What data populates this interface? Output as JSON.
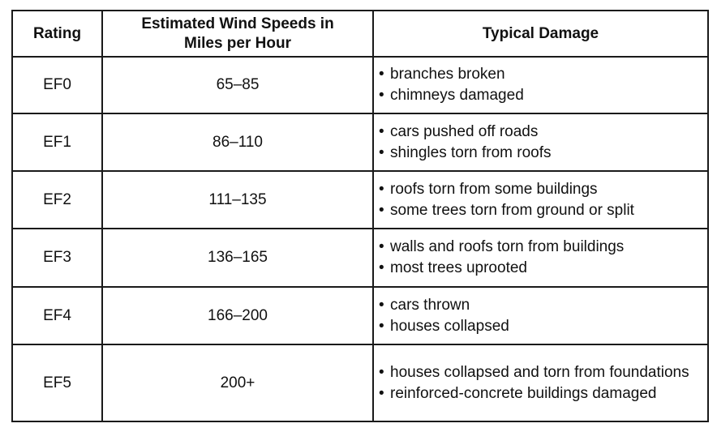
{
  "table": {
    "headers": {
      "rating": "Rating",
      "speed_line1": "Estimated Wind Speeds in",
      "speed_line2": "Miles per Hour",
      "damage": "Typical Damage"
    },
    "rows": [
      {
        "rating": "EF0",
        "speed": "65–85",
        "damage": [
          "branches broken",
          "chimneys damaged"
        ]
      },
      {
        "rating": "EF1",
        "speed": "86–110",
        "damage": [
          "cars pushed off roads",
          "shingles torn from roofs"
        ]
      },
      {
        "rating": "EF2",
        "speed": "111–135",
        "damage": [
          "roofs torn from some buildings",
          "some trees torn from ground or split"
        ]
      },
      {
        "rating": "EF3",
        "speed": "136–165",
        "damage": [
          "walls and roofs torn from buildings",
          "most trees uprooted"
        ]
      },
      {
        "rating": "EF4",
        "speed": "166–200",
        "damage": [
          "cars thrown",
          "houses collapsed"
        ]
      },
      {
        "rating": "EF5",
        "speed": "200+",
        "damage": [
          "houses collapsed and torn from foundations",
          "reinforced-concrete buildings damaged"
        ]
      }
    ]
  }
}
